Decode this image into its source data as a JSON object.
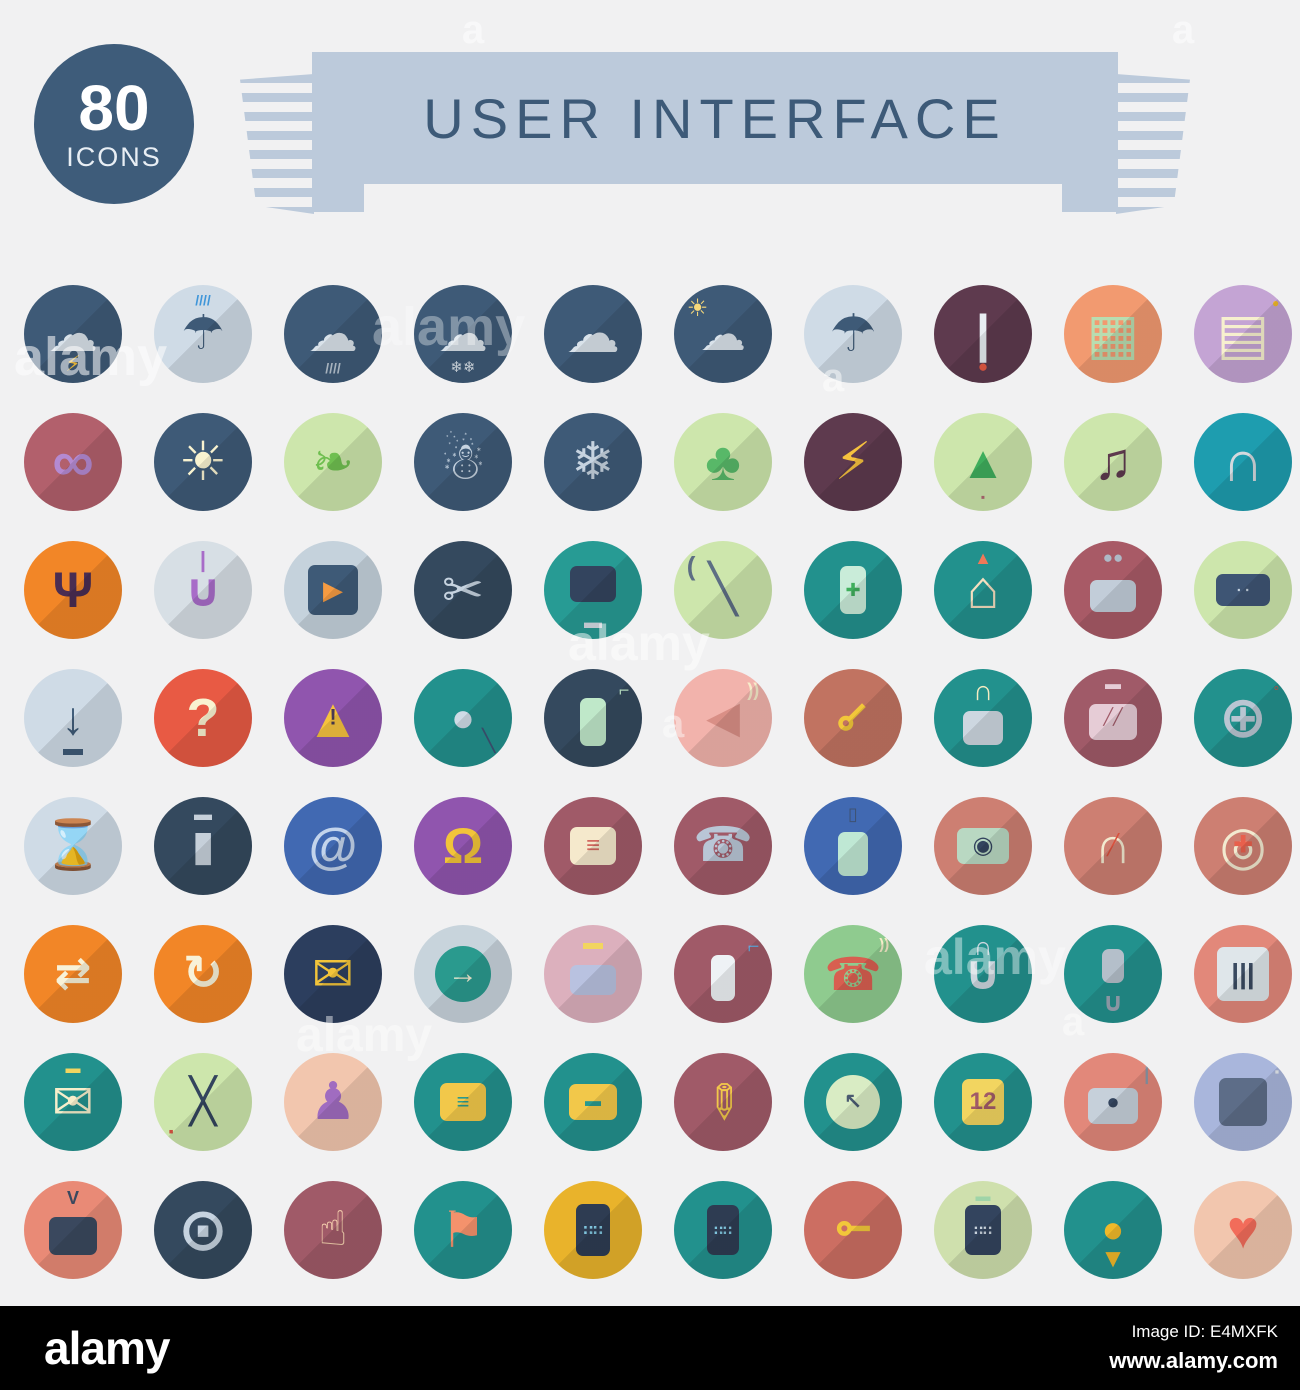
{
  "badge": {
    "number": "80",
    "label": "ICONS"
  },
  "banner": {
    "title": "USER INTERFACE"
  },
  "footer": {
    "logo": "alamy",
    "image_id": "Image ID: E4MXFK",
    "url": "www.alamy.com"
  },
  "watermarks": [
    "alamy",
    "alamy",
    "alamy",
    "alamy",
    "alamy",
    "a",
    "a",
    "a",
    "a",
    "a"
  ],
  "icons": [
    {
      "n": "storm-cloud",
      "bg": "#3e5a77",
      "g": "☁",
      "gc": "#d9e2ea",
      "gz": 50,
      "s": "⚡",
      "sc": "#f6c23e",
      "sp": "b",
      "sz": 22
    },
    {
      "n": "umbrella-rain",
      "bg": "#cfdbe6",
      "g": "☂",
      "gc": "#3e5a77",
      "gz": 48,
      "s": "////",
      "sc": "#3f96d9",
      "sp": "t",
      "sz": 14
    },
    {
      "n": "rain-cloud",
      "bg": "#3e5a77",
      "g": "☁",
      "gc": "#d9e2ea",
      "gz": 50,
      "s": "////",
      "sc": "#b9c6d2",
      "sp": "b",
      "sz": 14
    },
    {
      "n": "snow-cloud",
      "bg": "#3e5a77",
      "g": "☁",
      "gc": "#d9e2ea",
      "gz": 50,
      "s": "❄❄",
      "sc": "#d9e2ea",
      "sp": "b",
      "sz": 15
    },
    {
      "n": "cloud",
      "bg": "#3e5a77",
      "g": "☁",
      "gc": "#d9e2ea",
      "gz": 54
    },
    {
      "n": "partly-cloudy",
      "bg": "#3e5a77",
      "g": "☁",
      "gc": "#d9e2ea",
      "gz": 46,
      "s": "☀",
      "sc": "#f6d87a",
      "sp": "tl",
      "sz": 24
    },
    {
      "n": "umbrella",
      "bg": "#cfdbe6",
      "g": "☂",
      "gc": "#3e5a77",
      "gz": 52
    },
    {
      "n": "thermometer",
      "bg": "#5e3a4e",
      "g": "|",
      "gc": "#e8edf2",
      "gz": 52,
      "s": "●",
      "sc": "#e85a44",
      "sp": "b",
      "sz": 17
    },
    {
      "n": "film-strip",
      "bg": "#f29a70",
      "g": "▦",
      "gc": "#b8ddb0",
      "gz": 56
    },
    {
      "n": "picture",
      "bg": "#c4a4d4",
      "g": "▤",
      "gc": "#f7f0ce",
      "gz": 56,
      "s": "●",
      "sc": "#f0b929",
      "sp": "tr",
      "sz": 12
    },
    {
      "n": "sunglasses",
      "bg": "#b2606c",
      "g": "∞",
      "gc": "#b48ad2",
      "gz": 58
    },
    {
      "n": "sun",
      "bg": "#3e5a77",
      "g": "☀",
      "gc": "#f9f3d0",
      "gz": 54
    },
    {
      "n": "leaf",
      "bg": "#cde6ac",
      "g": "❧",
      "gc": "#6fbf50",
      "gz": 50
    },
    {
      "n": "snowman",
      "bg": "#3e5a77",
      "g": "☃",
      "gc": "#c6d3e0",
      "gz": 52
    },
    {
      "n": "snowflake",
      "bg": "#3e5a77",
      "g": "❄",
      "gc": "#c6d3e0",
      "gz": 52
    },
    {
      "n": "tree",
      "bg": "#cde6ac",
      "g": "♣",
      "gc": "#58b868",
      "gz": 54
    },
    {
      "n": "lightning",
      "bg": "#5e3a4e",
      "g": "⚡",
      "gc": "#f6c23e",
      "gz": 52
    },
    {
      "n": "pine-tree",
      "bg": "#cde6ac",
      "g": "▲",
      "gc": "#3fae5c",
      "gz": 46,
      "s": "▪",
      "sc": "#b06a72",
      "sp": "b",
      "sz": 12
    },
    {
      "n": "music-note",
      "bg": "#cde6ac",
      "g": "♫",
      "gc": "#5e3a4e",
      "gz": 52
    },
    {
      "n": "headphones",
      "bg": "#1e9daf",
      "g": "∩",
      "gc": "#d4d9de",
      "gz": 58
    },
    {
      "n": "antenna-signal",
      "bg": "#f28627",
      "g": "Ψ",
      "gc": "#4a2d52",
      "gz": 50
    },
    {
      "n": "power-button",
      "bg": "#d7dfe5",
      "g": "∪",
      "gc": "#a86cc8",
      "gz": 46,
      "s": "|",
      "sc": "#a86cc8",
      "sp": "t",
      "sz": 22
    },
    {
      "n": "play-button",
      "bg": "#c5d2dc",
      "p": "#3e5a77",
      "pw": 50,
      "ph": 50,
      "g": "▶",
      "gc": "#f59b42",
      "gz": 26
    },
    {
      "n": "scissors",
      "bg": "#34495e",
      "g": "✂",
      "gc": "#c6d3e0",
      "gz": 50
    },
    {
      "n": "desktop-monitor",
      "bg": "#279b94",
      "p": "#33445e",
      "pw": 46,
      "ph": 36,
      "py": -6,
      "s": "▬",
      "sc": "#d4dce4",
      "sp": "b",
      "sz": 18
    },
    {
      "n": "wrench",
      "bg": "#cde6ac",
      "g": "╲",
      "gc": "#5d6e84",
      "gz": 48,
      "s": "(",
      "sc": "#5d6e84",
      "sp": "tl",
      "sz": 26
    },
    {
      "n": "battery",
      "bg": "#22918d",
      "p": "#c9ecd9",
      "pw": 26,
      "ph": 48,
      "g": "✚",
      "gc": "#3fae5c",
      "gz": 18
    },
    {
      "n": "home",
      "bg": "#22918d",
      "g": "⌂",
      "gc": "#f5dfc0",
      "gz": 54,
      "s": "▲",
      "sc": "#f07858",
      "sp": "t",
      "sz": 18
    },
    {
      "n": "video-camera",
      "bg": "#a85a66",
      "p": "#c2cdd9",
      "pw": 46,
      "ph": 32,
      "py": 6,
      "s": "●●",
      "sc": "#aeb9c6",
      "sp": "t",
      "sz": 17
    },
    {
      "n": "gamepad",
      "bg": "#cde6ac",
      "p": "#3e5574",
      "pw": 54,
      "ph": 32,
      "g": "∙ ∙",
      "gc": "#c6d3e0",
      "gz": 15
    },
    {
      "n": "download",
      "bg": "#cfdbe6",
      "g": "↓",
      "gc": "#3e5a77",
      "gz": 46,
      "s": "▬",
      "sc": "#3e5a77",
      "sp": "b",
      "sz": 20
    },
    {
      "n": "question-help",
      "bg": "#e85a44",
      "g": "?",
      "gc": "#f9f3d0",
      "gz": 54
    },
    {
      "n": "warning",
      "bg": "#9055ae",
      "g": "▲",
      "gc": "#f6c23e",
      "gz": 56,
      "s": "!",
      "sc": "#4a3a52",
      "sp": "c",
      "sz": 22
    },
    {
      "n": "search",
      "bg": "#22918d",
      "g": "●",
      "gc": "#cfdbe6",
      "gz": 40,
      "s": "╲",
      "sc": "#3e5273",
      "sp": "br",
      "sz": 22
    },
    {
      "n": "mouse",
      "bg": "#34495e",
      "p": "#bfe8c9",
      "pw": 26,
      "ph": 48,
      "py": 4,
      "s": "⌐",
      "sc": "#bfe8c9",
      "sp": "tr",
      "sz": 18
    },
    {
      "n": "announcement",
      "bg": "#f2b3ac",
      "g": "◀",
      "gc": "#d98f86",
      "gz": 44,
      "s": "))",
      "sc": "#f7ecca",
      "sp": "tr",
      "sz": 18
    },
    {
      "n": "key-diagonal",
      "bg": "#c17361",
      "g": "⊸",
      "gc": "#f2c73a",
      "gz": 46,
      "rot": 135
    },
    {
      "n": "unlock",
      "bg": "#22918d",
      "p": "#cdd7e0",
      "pw": 40,
      "ph": 34,
      "py": 10,
      "s": "∩",
      "sc": "#f5ecc2",
      "sp": "t",
      "sz": 28
    },
    {
      "n": "clapperboard",
      "bg": "#a05a68",
      "p": "#e6ccd6",
      "pw": 48,
      "ph": 36,
      "py": 4,
      "g": "╱╱",
      "gc": "#a05a68",
      "gz": 16,
      "s": "▬",
      "sc": "#e6ccd6",
      "sp": "t",
      "sz": 16
    },
    {
      "n": "film-reel",
      "bg": "#22918d",
      "g": "⊕",
      "gc": "#b9c6d2",
      "gz": 58,
      "s": "◦",
      "sc": "#e84b3c",
      "sp": "tr",
      "sz": 16
    },
    {
      "n": "hourglass",
      "bg": "#cfdbe6",
      "g": "⌛",
      "gc": "#55687c",
      "gz": 48
    },
    {
      "n": "trash",
      "bg": "#34495e",
      "g": "▮",
      "gc": "#c6d0da",
      "gz": 42,
      "s": "▬",
      "sc": "#c6d0da",
      "sp": "t",
      "sz": 18
    },
    {
      "n": "at-email",
      "bg": "#4169b2",
      "g": "@",
      "gc": "#c3d4ec",
      "gz": 50
    },
    {
      "n": "notification-bell",
      "bg": "#9055ae",
      "g": "Ω",
      "gc": "#f2c43a",
      "gz": 50
    },
    {
      "n": "chat-message",
      "bg": "#a05a68",
      "p": "#f5e9cc",
      "pw": 46,
      "ph": 38,
      "g": "≡",
      "gc": "#d2685f",
      "gz": 24
    },
    {
      "n": "telephone",
      "bg": "#a05a68",
      "g": "☎",
      "gc": "#b9c6d6",
      "gz": 48
    },
    {
      "n": "usb-drive",
      "bg": "#4169b2",
      "p": "#bfe8d4",
      "pw": 30,
      "ph": 44,
      "py": 8,
      "s": "▯",
      "sc": "#3e5273",
      "sp": "t",
      "sz": 18
    },
    {
      "n": "camera",
      "bg": "#cd7f72",
      "p": "#b9d8c2",
      "pw": 52,
      "ph": 36,
      "g": "◉",
      "gc": "#33445e",
      "gz": 24
    },
    {
      "n": "gauge",
      "bg": "#cd7f72",
      "g": "∩",
      "gc": "#f2ead0",
      "gz": 52,
      "s": "╱",
      "sc": "#d8503c",
      "sp": "c",
      "sz": 20
    },
    {
      "n": "lifebuoy",
      "bg": "#cd7f72",
      "g": "◎",
      "gc": "#f2ead0",
      "gz": 54,
      "s": "✚",
      "sc": "#e8604c",
      "sp": "c",
      "sz": 24
    },
    {
      "n": "sync",
      "bg": "#f28627",
      "g": "⇄",
      "gc": "#f8f2d8",
      "gz": 44
    },
    {
      "n": "refresh",
      "bg": "#f28627",
      "g": "↻",
      "gc": "#f8f2d8",
      "gz": 48
    },
    {
      "n": "mail",
      "bg": "#2c3e5e",
      "g": "✉",
      "gc": "#f2c43a",
      "gz": 50
    },
    {
      "n": "arrow-right",
      "bg": "#c8d4dc",
      "p": "#2a9a8e",
      "pr": 1,
      "pw": 56,
      "ph": 56,
      "g": "→",
      "gc": "#f3eed4",
      "gz": 30
    },
    {
      "n": "printer",
      "bg": "#dcb0bd",
      "p": "#b9c2e0",
      "pw": 46,
      "ph": 30,
      "py": 6,
      "s": "▬",
      "sc": "#f2d560",
      "sp": "t",
      "sz": 20
    },
    {
      "n": "fire-extinguisher",
      "bg": "#a05a68",
      "p": "#eef2f5",
      "pw": 24,
      "ph": 46,
      "py": 4,
      "s": "⌐",
      "sc": "#6aa6d8",
      "sp": "tr",
      "sz": 20
    },
    {
      "n": "phone-call",
      "bg": "#8fcb8f",
      "g": "☎",
      "gc": "#d85f50",
      "gz": 46,
      "s": "))",
      "sc": "#f7ecca",
      "sp": "tr",
      "sz": 15
    },
    {
      "n": "paperclip",
      "bg": "#22918d",
      "g": "∪",
      "gc": "#ccd6de",
      "gz": 48,
      "s": "∩",
      "sc": "#ccd6de",
      "sp": "t",
      "sz": 26
    },
    {
      "n": "microphone",
      "bg": "#22918d",
      "p": "#b4bfca",
      "pw": 22,
      "ph": 34,
      "py": -8,
      "s": "∪",
      "sc": "#9aa6b4",
      "sp": "b",
      "sz": 26
    },
    {
      "n": "equalizer",
      "bg": "#e2887a",
      "p": "#dfe6ea",
      "pw": 52,
      "ph": 54,
      "g": "|||",
      "gc": "#3a4a60",
      "gz": 28
    },
    {
      "n": "open-mail",
      "bg": "#22918d",
      "g": "✉",
      "gc": "#f7eecb",
      "gz": 50,
      "s": "▬",
      "sc": "#f2d560",
      "sp": "t",
      "sz": 15
    },
    {
      "n": "tools",
      "bg": "#cde6ac",
      "g": "╳",
      "gc": "#33445e",
      "gz": 44,
      "s": "▪",
      "sc": "#c84b3c",
      "sp": "bl",
      "sz": 14
    },
    {
      "n": "user-profile",
      "bg": "#f2c6ae",
      "g": "♟",
      "gc": "#a06cc0",
      "gz": 52
    },
    {
      "n": "folder-documents",
      "bg": "#22918d",
      "p": "#f2c84a",
      "pw": 46,
      "ph": 38,
      "g": "≡",
      "gc": "#2a9a8e",
      "gz": 22
    },
    {
      "n": "folder-archive",
      "bg": "#22918d",
      "p": "#f2c84a",
      "pw": 48,
      "ph": 36,
      "g": "▬",
      "gc": "#2a9a8e",
      "gz": 16
    },
    {
      "n": "pencil",
      "bg": "#a05a68",
      "g": "✎",
      "gc": "#f2c84a",
      "gz": 46,
      "rot": 45
    },
    {
      "n": "clock",
      "bg": "#22918d",
      "p": "#d9ecc4",
      "pr": 1,
      "pw": 54,
      "ph": 54,
      "g": "↖",
      "gc": "#4a5a70",
      "gz": 22
    },
    {
      "n": "calendar",
      "bg": "#22918d",
      "p": "#f2d560",
      "pw": 42,
      "ph": 46,
      "g": "12",
      "gc": "#a05a68",
      "gz": 24
    },
    {
      "n": "radio",
      "bg": "#e2887a",
      "p": "#c6d0da",
      "pw": 50,
      "ph": 36,
      "py": 4,
      "g": "●",
      "gc": "#33445e",
      "gz": 22,
      "s": "|",
      "sc": "#8a98a8",
      "sp": "tr",
      "sz": 18
    },
    {
      "n": "floppy-disk",
      "bg": "#a9b6dc",
      "p": "#5d6d88",
      "pw": 48,
      "ph": 48,
      "s": "▪",
      "sc": "#e8edf2",
      "sp": "tr",
      "sz": 13
    },
    {
      "n": "tv",
      "bg": "#e98a76",
      "p": "#3a485e",
      "pw": 48,
      "ph": 38,
      "py": 6,
      "s": "V",
      "sc": "#3a485e",
      "sp": "t",
      "sz": 18
    },
    {
      "n": "cd-disc",
      "bg": "#34495e",
      "g": "⊙",
      "gc": "#c6d3e0",
      "gz": 60
    },
    {
      "n": "hand-pointer",
      "bg": "#a05a68",
      "g": "☝",
      "gc": "#f5cfae",
      "gz": 48
    },
    {
      "n": "flag",
      "bg": "#22918d",
      "g": "⚑",
      "gc": "#f4926c",
      "gz": 50
    },
    {
      "n": "tablet-apps",
      "bg": "#e9b32b",
      "p": "#2e3c52",
      "pw": 34,
      "ph": 52,
      "g": "∷∷",
      "gc": "#7fc4dc",
      "gz": 14
    },
    {
      "n": "smartphone-apps",
      "bg": "#22918d",
      "p": "#2e3c52",
      "pw": 32,
      "ph": 50,
      "g": "∷∷",
      "gc": "#7fc4dc",
      "gz": 13
    },
    {
      "n": "key",
      "bg": "#cc6e62",
      "g": "⊸",
      "gc": "#f2c73a",
      "gz": 46,
      "rot": 180
    },
    {
      "n": "calculator",
      "bg": "#cfe0ad",
      "p": "#33445e",
      "pw": 36,
      "ph": 50,
      "g": "∷∷",
      "gc": "#c8d2dc",
      "gz": 13,
      "s": "▬",
      "sc": "#9fd4a8",
      "sp": "t",
      "sz": 15
    },
    {
      "n": "location-pin",
      "bg": "#22918d",
      "g": "●",
      "gc": "#f0b929",
      "gz": 38,
      "s": "▼",
      "sc": "#f0b929",
      "sp": "b",
      "sz": 26
    },
    {
      "n": "heart",
      "bg": "#f2c6ae",
      "g": "♥",
      "gc": "#f26c5a",
      "gz": 54
    }
  ]
}
